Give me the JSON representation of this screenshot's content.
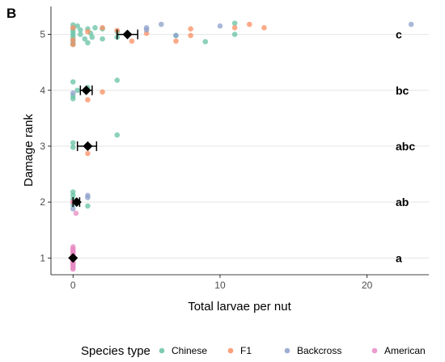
{
  "panel_label": "B",
  "chart_data": {
    "type": "scatter",
    "xlabel": "Total larvae per nut",
    "ylabel": "Damage rank",
    "xlim": [
      -1.5,
      24.2
    ],
    "ylim": [
      0.7,
      5.5
    ],
    "x_ticks": [
      0,
      10,
      20
    ],
    "y_ticks": [
      1,
      2,
      3,
      4,
      5
    ],
    "grid": "horizontal major gridlines",
    "legend_title": "Species type",
    "legend_position": "bottom",
    "series": [
      {
        "name": "Chinese",
        "color": "#66c2a5",
        "points": [
          [
            0,
            5.17
          ],
          [
            0,
            5.1
          ],
          [
            0,
            5.05
          ],
          [
            0,
            5.0
          ],
          [
            0,
            4.95
          ],
          [
            0,
            4.9
          ],
          [
            0,
            4.85
          ],
          [
            0,
            4.82
          ],
          [
            0.3,
            5.15
          ],
          [
            0.5,
            5.08
          ],
          [
            0.5,
            5.0
          ],
          [
            0.8,
            4.92
          ],
          [
            1.0,
            4.85
          ],
          [
            1.0,
            5.1
          ],
          [
            1.2,
            5.02
          ],
          [
            1.3,
            4.95
          ],
          [
            1.5,
            5.12
          ],
          [
            2.0,
            5.1
          ],
          [
            2.0,
            4.92
          ],
          [
            3.0,
            5.05
          ],
          [
            3.0,
            4.95
          ],
          [
            7.0,
            4.98
          ],
          [
            9.0,
            4.87
          ],
          [
            11.0,
            5.2
          ],
          [
            11.0,
            5.0
          ],
          [
            0,
            4.15
          ],
          [
            0,
            3.9
          ],
          [
            0,
            3.85
          ],
          [
            0.3,
            4.0
          ],
          [
            1.0,
            4.05
          ],
          [
            3.0,
            4.18
          ],
          [
            0,
            3.06
          ],
          [
            0,
            2.98
          ],
          [
            3.0,
            3.2
          ],
          [
            0,
            2.18
          ],
          [
            0,
            2.12
          ],
          [
            0,
            2.05
          ],
          [
            0,
            1.95
          ],
          [
            1.0,
            1.93
          ]
        ]
      },
      {
        "name": "F1",
        "color": "#fc8d62",
        "points": [
          [
            0,
            5.12
          ],
          [
            0,
            4.9
          ],
          [
            0,
            4.82
          ],
          [
            1.0,
            5.05
          ],
          [
            2.0,
            5.12
          ],
          [
            3.0,
            5.07
          ],
          [
            4.0,
            4.88
          ],
          [
            5.0,
            5.02
          ],
          [
            7.0,
            4.88
          ],
          [
            8.0,
            4.98
          ],
          [
            8.0,
            5.1
          ],
          [
            11.0,
            5.12
          ],
          [
            12.0,
            5.18
          ],
          [
            13.0,
            5.12
          ],
          [
            1.0,
            3.83
          ],
          [
            2.0,
            3.97
          ],
          [
            1.0,
            2.87
          ],
          [
            0,
            2.0
          ]
        ]
      },
      {
        "name": "Backcross",
        "color": "#8da0cb",
        "points": [
          [
            5.0,
            5.12
          ],
          [
            5.0,
            5.08
          ],
          [
            6.0,
            5.18
          ],
          [
            7.0,
            4.98
          ],
          [
            10.0,
            5.15
          ],
          [
            23.0,
            5.18
          ],
          [
            0,
            3.95
          ],
          [
            1.0,
            2.12
          ],
          [
            1.0,
            2.08
          ],
          [
            0,
            1.88
          ]
        ]
      },
      {
        "name": "American",
        "color": "#e78ac3",
        "points": [
          [
            0,
            2.0
          ],
          [
            0.2,
            1.8
          ],
          [
            0,
            1.2
          ],
          [
            0,
            1.17
          ],
          [
            0,
            1.15
          ],
          [
            0,
            1.12
          ],
          [
            0,
            1.1
          ],
          [
            0,
            1.07
          ],
          [
            0,
            1.05
          ],
          [
            0,
            1.02
          ],
          [
            0,
            1.0
          ],
          [
            0,
            0.98
          ],
          [
            0,
            0.95
          ],
          [
            0,
            0.92
          ],
          [
            0,
            0.9
          ],
          [
            0,
            0.88
          ],
          [
            0,
            0.85
          ],
          [
            0,
            0.82
          ],
          [
            0,
            0.8
          ]
        ]
      }
    ],
    "means": [
      {
        "y": 5,
        "x": 3.7,
        "xmin": 3.0,
        "xmax": 4.4
      },
      {
        "y": 4,
        "x": 0.9,
        "xmin": 0.5,
        "xmax": 1.3
      },
      {
        "y": 3,
        "x": 1.0,
        "xmin": 0.3,
        "xmax": 1.6
      },
      {
        "y": 2,
        "x": 0.25,
        "xmin": 0.0,
        "xmax": 0.45
      },
      {
        "y": 1,
        "x": 0.0,
        "xmin": 0.0,
        "xmax": 0.0
      }
    ],
    "letters": [
      {
        "y": 5,
        "text": "c"
      },
      {
        "y": 4,
        "text": "bc"
      },
      {
        "y": 3,
        "text": "abc"
      },
      {
        "y": 2,
        "text": "ab"
      },
      {
        "y": 1,
        "text": "a"
      }
    ]
  }
}
